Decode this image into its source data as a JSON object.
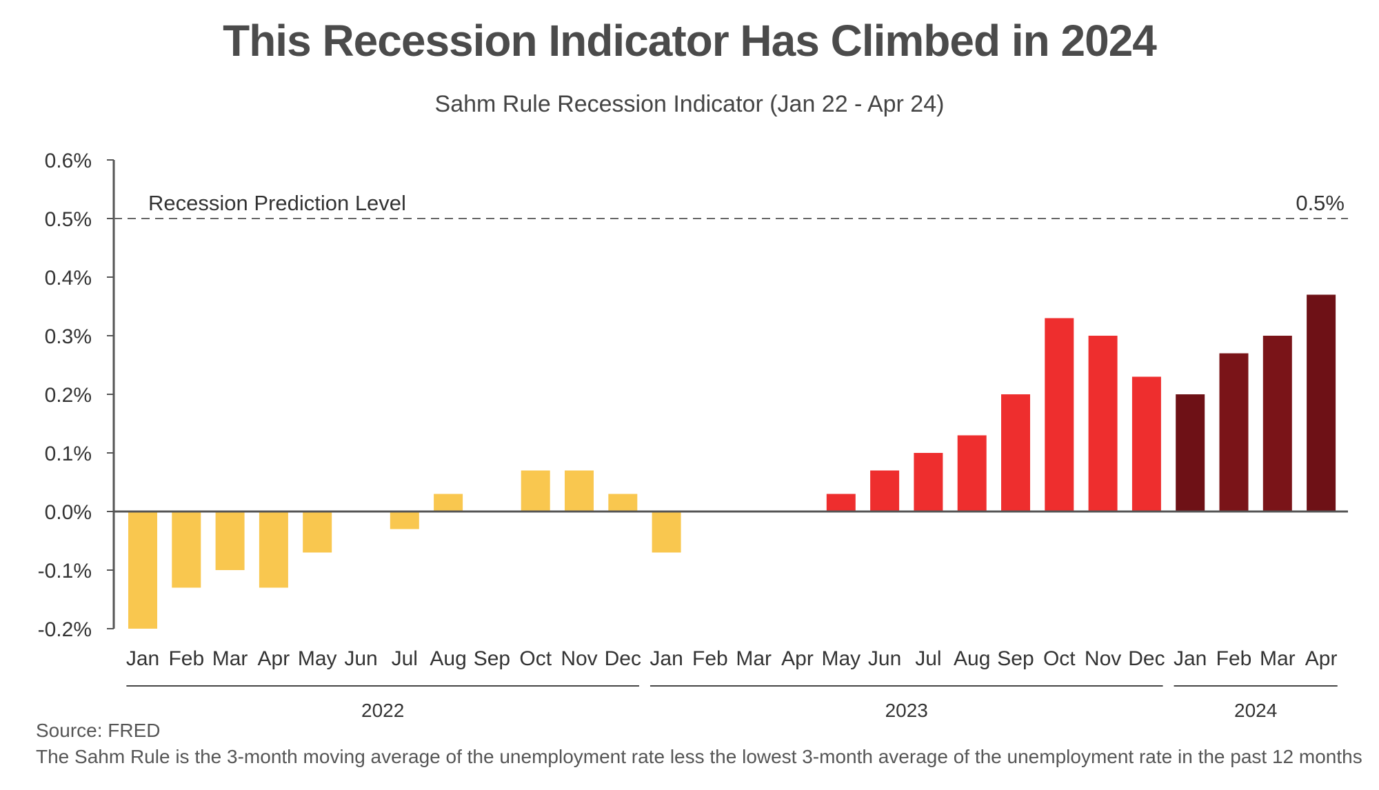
{
  "chart_data": {
    "type": "bar",
    "title": "This Recession Indicator Has Climbed in 2024",
    "subtitle": "Sahm Rule Recession Indicator (Jan 22 - Apr 24)",
    "ylim": [
      -0.2,
      0.6
    ],
    "yticks": [
      {
        "value": -0.2,
        "label": "-0.2%"
      },
      {
        "value": -0.1,
        "label": "-0.1%"
      },
      {
        "value": 0.0,
        "label": "0.0%"
      },
      {
        "value": 0.1,
        "label": "0.1%"
      },
      {
        "value": 0.2,
        "label": "0.2%"
      },
      {
        "value": 0.3,
        "label": "0.3%"
      },
      {
        "value": 0.4,
        "label": "0.4%"
      },
      {
        "value": 0.5,
        "label": "0.5%"
      },
      {
        "value": 0.6,
        "label": "0.6%"
      }
    ],
    "reference_line": {
      "value": 0.5,
      "label": "Recession Prediction Level",
      "value_label": "0.5%",
      "style": "dashed"
    },
    "categories": [
      "Jan",
      "Feb",
      "Mar",
      "Apr",
      "May",
      "Jun",
      "Jul",
      "Aug",
      "Sep",
      "Oct",
      "Nov",
      "Dec",
      "Jan",
      "Feb",
      "Mar",
      "Apr",
      "May",
      "Jun",
      "Jul",
      "Aug",
      "Sep",
      "Oct",
      "Nov",
      "Dec",
      "Jan",
      "Feb",
      "Mar",
      "Apr"
    ],
    "values": [
      -0.2,
      -0.13,
      -0.1,
      -0.13,
      -0.07,
      0.0,
      -0.03,
      0.03,
      0.0,
      0.07,
      0.07,
      0.03,
      -0.07,
      0.0,
      0.0,
      0.0,
      0.03,
      0.07,
      0.1,
      0.13,
      0.2,
      0.33,
      0.3,
      0.23,
      0.2,
      0.27,
      0.3,
      0.37
    ],
    "bar_colors": [
      "#F9C74F",
      "#F9C74F",
      "#F9C74F",
      "#F9C74F",
      "#F9C74F",
      "#F9C74F",
      "#F9C74F",
      "#F9C74F",
      "#F9C74F",
      "#F9C74F",
      "#F9C74F",
      "#F9C74F",
      "#F9C74F",
      "#EE2E2E",
      "#EE2E2E",
      "#EE2E2E",
      "#EE2E2E",
      "#EE2E2E",
      "#EE2E2E",
      "#EE2E2E",
      "#EE2E2E",
      "#EE2E2E",
      "#EE2E2E",
      "#EE2E2E",
      "#6E1116",
      "#7A1418",
      "#7A1418",
      "#6E1116"
    ],
    "year_groups": [
      {
        "label": "2022",
        "start": 0,
        "end": 11
      },
      {
        "label": "2023",
        "start": 12,
        "end": 23
      },
      {
        "label": "2024",
        "start": 24,
        "end": 27
      }
    ],
    "grid": false,
    "legend": "none"
  },
  "footnotes": {
    "source": "Source: FRED",
    "definition": "The Sahm Rule is the 3-month moving average of the unemployment rate less the lowest 3-month average of the unemployment rate in the past 12 months"
  }
}
